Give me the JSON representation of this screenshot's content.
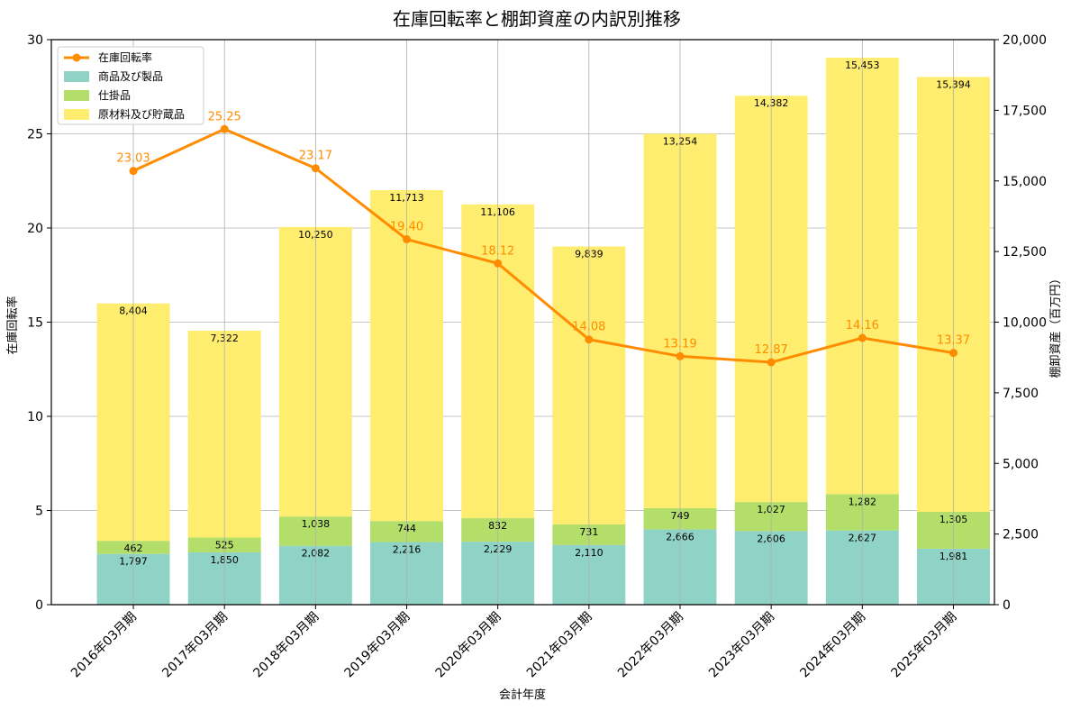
{
  "chart_data": {
    "type": "bar",
    "title": "在庫回転率と棚卸資産の内訳別推移",
    "xlabel": "会計年度",
    "ylabel": "在庫回転率",
    "y2label": "棚卸資産（百万円）",
    "ylim": [
      0,
      30
    ],
    "y2lim": [
      0,
      20000
    ],
    "yticks": [
      "0",
      "5",
      "10",
      "15",
      "20",
      "25",
      "30"
    ],
    "y2ticks": [
      "0",
      "2,500",
      "5,000",
      "7,500",
      "10,000",
      "12,500",
      "15,000",
      "17,500",
      "20,000"
    ],
    "grid": true,
    "legend_position": "top-left",
    "categories": [
      "2016年03月期",
      "2017年03月期",
      "2018年03月期",
      "2019年03月期",
      "2020年03月期",
      "2021年03月期",
      "2022年03月期",
      "2023年03月期",
      "2024年03月期",
      "2025年03月期"
    ],
    "series": [
      {
        "name": "在庫回転率",
        "type": "line",
        "axis": "left",
        "color": "#ff8c00",
        "values": [
          23.03,
          25.25,
          23.17,
          19.4,
          18.12,
          14.08,
          13.19,
          12.87,
          14.16,
          13.37
        ],
        "labels": [
          "23.03",
          "25.25",
          "23.17",
          "19.40",
          "18.12",
          "14.08",
          "13.19",
          "12.87",
          "14.16",
          "13.37"
        ]
      },
      {
        "name": "商品及び製品",
        "type": "stacked-bar",
        "axis": "right",
        "color": "#8fd3c7",
        "values": [
          1797,
          1850,
          2082,
          2216,
          2229,
          2110,
          2666,
          2606,
          2627,
          1981
        ],
        "labels": [
          "1,797",
          "1,850",
          "2,082",
          "2,216",
          "2,229",
          "2,110",
          "2,666",
          "2,606",
          "2,627",
          "1,981"
        ]
      },
      {
        "name": "仕掛品",
        "type": "stacked-bar",
        "axis": "right",
        "color": "#b3de69",
        "values": [
          462,
          525,
          1038,
          744,
          832,
          731,
          749,
          1027,
          1282,
          1305
        ],
        "labels": [
          "462",
          "525",
          "1,038",
          "744",
          "832",
          "731",
          "749",
          "1,027",
          "1,282",
          "1,305"
        ]
      },
      {
        "name": "原材料及び貯蔵品",
        "type": "stacked-bar",
        "axis": "right",
        "color": "#ffed6f",
        "values": [
          8404,
          7322,
          10250,
          11713,
          11106,
          9839,
          13254,
          14382,
          15453,
          15394
        ],
        "labels": [
          "8,404",
          "7,322",
          "10,250",
          "11,713",
          "11,106",
          "9,839",
          "13,254",
          "14,382",
          "15,453",
          "15,394"
        ]
      }
    ]
  }
}
